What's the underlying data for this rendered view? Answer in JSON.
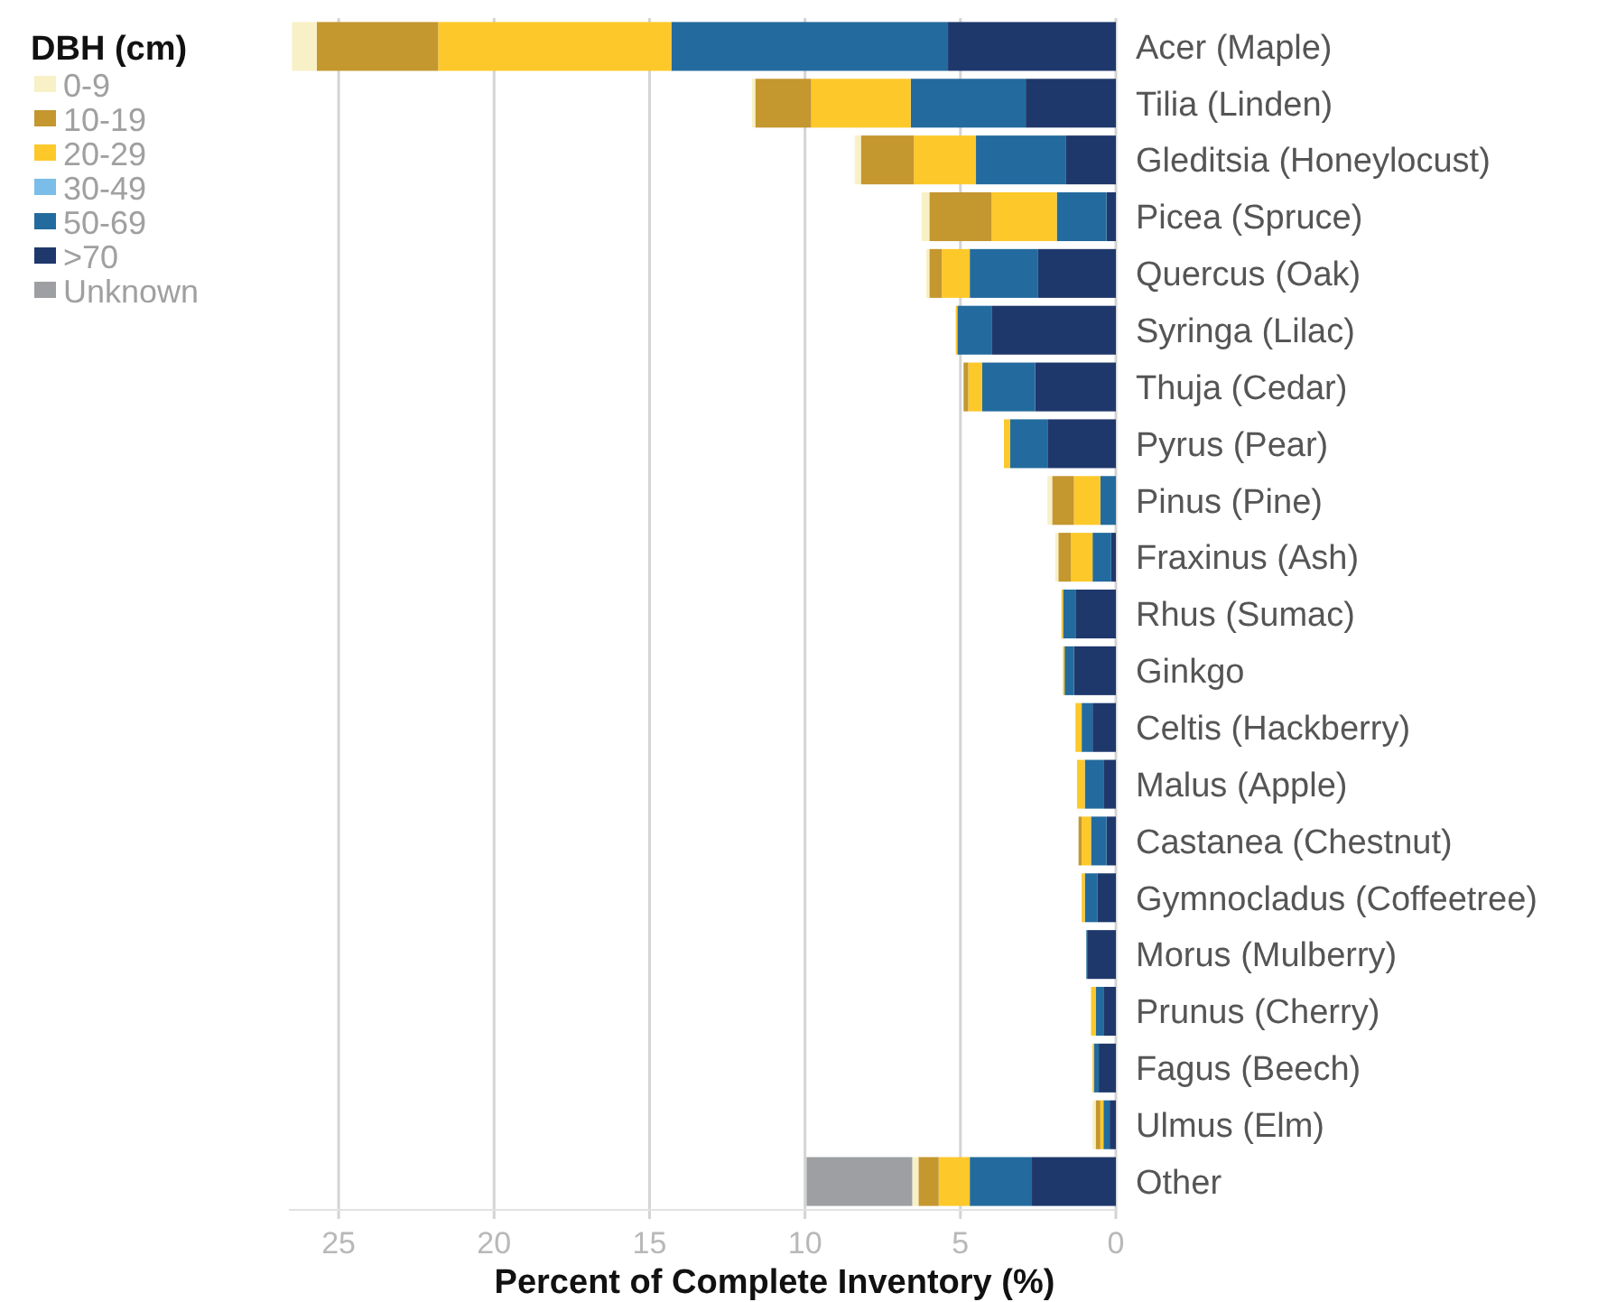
{
  "chart_data": {
    "type": "bar",
    "orientation": "horizontal",
    "stacked": true,
    "xlabel": "Percent of Complete Inventory  (%)",
    "legend_title": "DBH (cm)",
    "legend": "top left",
    "grid": "x",
    "categories": [
      "Acer (Maple)",
      "Tilia (Linden)",
      "Gleditsia (Honeylocust)",
      "Picea (Spruce)",
      "Quercus (Oak)",
      "Syringa (Lilac)",
      "Thuja (Cedar)",
      "Pyrus (Pear)",
      "Pinus (Pine)",
      "Fraxinus (Ash)",
      "Rhus (Sumac)",
      "Ginkgo",
      "Celtis (Hackberry)",
      "Malus (Apple)",
      "Castanea (Chestnut)",
      "Gymnocladus (Coffeetree)",
      "Morus (Mulberry)",
      "Prunus (Cherry)",
      "Fagus (Beech)",
      "Ulmus (Elm)",
      "Other"
    ],
    "xlim": [
      26.6,
      0
    ],
    "xticks": [
      25,
      20,
      15,
      10,
      5,
      0
    ],
    "series": [
      {
        "name": ">70",
        "color": "#1f386c",
        "values": [
          5.4,
          2.9,
          1.6,
          0.3,
          2.5,
          4.0,
          2.6,
          2.2,
          null,
          0.15,
          1.3,
          1.35,
          0.75,
          0.4,
          0.3,
          0.6,
          0.9,
          0.4,
          0.55,
          0.2,
          2.7
        ]
      },
      {
        "name": "50-69",
        "color": "#236b9e",
        "values": [
          8.9,
          3.7,
          2.9,
          1.6,
          2.2,
          1.1,
          1.7,
          1.2,
          0.5,
          0.6,
          0.4,
          0.3,
          0.35,
          0.6,
          0.5,
          0.4,
          0.05,
          0.25,
          0.15,
          0.2,
          2.0
        ]
      },
      {
        "name": "30-49",
        "color": "#79bde8",
        "values": [
          null,
          null,
          null,
          null,
          null,
          null,
          null,
          null,
          null,
          null,
          null,
          null,
          null,
          null,
          null,
          null,
          null,
          null,
          null,
          null,
          null
        ]
      },
      {
        "name": "20-29",
        "color": "#fdc82a",
        "values": [
          7.5,
          3.2,
          2.0,
          2.1,
          0.9,
          0.05,
          0.45,
          0.2,
          0.85,
          0.7,
          0.05,
          0.05,
          0.2,
          0.25,
          0.3,
          0.1,
          null,
          0.15,
          0.05,
          0.1,
          1.0
        ]
      },
      {
        "name": "10-19",
        "color": "#c4972f",
        "values": [
          3.9,
          1.8,
          1.7,
          2.0,
          0.4,
          null,
          0.15,
          null,
          0.7,
          0.4,
          null,
          null,
          null,
          null,
          0.1,
          null,
          null,
          null,
          null,
          0.15,
          0.65
        ]
      },
      {
        "name": "0-9",
        "color": "#f8f0c6",
        "values": [
          0.8,
          0.1,
          0.2,
          0.25,
          0.1,
          null,
          null,
          null,
          0.15,
          0.1,
          null,
          null,
          null,
          null,
          null,
          null,
          null,
          null,
          null,
          0.1,
          0.2
        ]
      },
      {
        "name": "Unknown",
        "color": "#9d9fa2",
        "values": [
          null,
          null,
          null,
          null,
          null,
          null,
          null,
          null,
          null,
          null,
          null,
          null,
          null,
          null,
          null,
          null,
          null,
          null,
          null,
          null,
          3.4
        ]
      }
    ]
  }
}
